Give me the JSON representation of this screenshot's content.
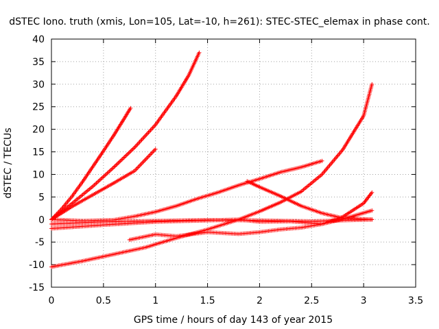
{
  "chart_data": {
    "type": "scatter",
    "title": "dSTEC Iono. truth (xmis, Lon=105, Lat=-10, h=261): STEC-STEC_elemax in phase cont.",
    "xlabel": "GPS time / hours of day 143 of year 2015",
    "ylabel": "dSTEC  / TECUs",
    "xlim": [
      0,
      3.5
    ],
    "ylim": [
      -15,
      40
    ],
    "xticks": [
      "0",
      "0.5",
      "1",
      "1.5",
      "2",
      "2.5",
      "3",
      "3.5"
    ],
    "yticks": [
      "-15",
      "-10",
      "-5",
      "0",
      "5",
      "10",
      "15",
      "20",
      "25",
      "30",
      "35",
      "40"
    ],
    "grid": true,
    "marker": "+",
    "color": "#ff0000",
    "series": [
      {
        "values": [
          [
            0.0,
            0.0
          ],
          [
            0.1,
            2.4
          ],
          [
            0.2,
            5.2
          ],
          [
            0.3,
            8.4
          ],
          [
            0.4,
            11.8
          ],
          [
            0.5,
            15.2
          ],
          [
            0.6,
            18.7
          ],
          [
            0.7,
            22.4
          ],
          [
            0.76,
            24.7
          ]
        ]
      },
      {
        "values": [
          [
            0.0,
            0.0
          ],
          [
            0.2,
            3.6
          ],
          [
            0.4,
            7.4
          ],
          [
            0.6,
            11.6
          ],
          [
            0.8,
            16.0
          ],
          [
            1.0,
            21.0
          ],
          [
            1.2,
            27.4
          ],
          [
            1.32,
            32.0
          ],
          [
            1.42,
            37.0
          ]
        ]
      },
      {
        "values": [
          [
            0.0,
            0.0
          ],
          [
            0.2,
            2.9
          ],
          [
            0.4,
            5.5
          ],
          [
            0.6,
            8.1
          ],
          [
            0.8,
            10.8
          ],
          [
            1.0,
            15.6
          ]
        ]
      },
      {
        "values": [
          [
            0.0,
            0.0
          ],
          [
            0.3,
            -0.3
          ],
          [
            0.6,
            -0.1
          ],
          [
            0.8,
            0.7
          ],
          [
            1.0,
            1.7
          ],
          [
            1.2,
            3.0
          ],
          [
            1.4,
            4.6
          ],
          [
            1.6,
            6.0
          ],
          [
            1.8,
            7.6
          ],
          [
            2.0,
            9.0
          ],
          [
            2.2,
            10.5
          ],
          [
            2.4,
            11.6
          ],
          [
            2.6,
            13.0
          ]
        ]
      },
      {
        "values": [
          [
            0.0,
            -1.0
          ],
          [
            0.5,
            -0.5
          ],
          [
            1.0,
            -0.3
          ],
          [
            1.5,
            -0.1
          ],
          [
            2.0,
            -0.2
          ],
          [
            2.5,
            -0.4
          ],
          [
            3.08,
            0.0
          ]
        ]
      },
      {
        "values": [
          [
            0.0,
            -2.0
          ],
          [
            0.5,
            -1.2
          ],
          [
            1.0,
            -0.5
          ],
          [
            1.5,
            -0.2
          ],
          [
            1.8,
            0.0
          ],
          [
            2.0,
            -0.5
          ],
          [
            2.3,
            -0.4
          ],
          [
            2.6,
            -1.0
          ],
          [
            2.8,
            0.1
          ],
          [
            3.08,
            2.0
          ]
        ]
      },
      {
        "values": [
          [
            0.0,
            -10.5
          ],
          [
            0.3,
            -9.2
          ],
          [
            0.6,
            -7.7
          ],
          [
            0.9,
            -6.2
          ],
          [
            1.2,
            -4.1
          ],
          [
            1.5,
            -2.2
          ],
          [
            1.8,
            0.0
          ],
          [
            2.0,
            1.8
          ],
          [
            2.2,
            3.8
          ],
          [
            2.4,
            6.2
          ],
          [
            2.6,
            10.0
          ],
          [
            2.8,
            15.5
          ],
          [
            3.0,
            23.0
          ],
          [
            3.08,
            30.0
          ]
        ]
      },
      {
        "values": [
          [
            0.75,
            -4.5
          ],
          [
            1.0,
            -3.3
          ],
          [
            1.2,
            -3.7
          ],
          [
            1.5,
            -2.8
          ],
          [
            1.8,
            -3.2
          ],
          [
            2.0,
            -2.8
          ],
          [
            2.2,
            -2.2
          ],
          [
            2.4,
            -1.8
          ],
          [
            2.6,
            -1.0
          ],
          [
            2.8,
            0.6
          ],
          [
            3.0,
            3.6
          ],
          [
            3.08,
            6.0
          ]
        ]
      },
      {
        "values": [
          [
            1.88,
            8.5
          ],
          [
            2.0,
            7.2
          ],
          [
            2.2,
            5.2
          ],
          [
            2.4,
            3.0
          ],
          [
            2.6,
            1.4
          ],
          [
            2.8,
            0.3
          ],
          [
            2.9,
            0.2
          ],
          [
            3.08,
            0.0
          ]
        ]
      }
    ]
  }
}
